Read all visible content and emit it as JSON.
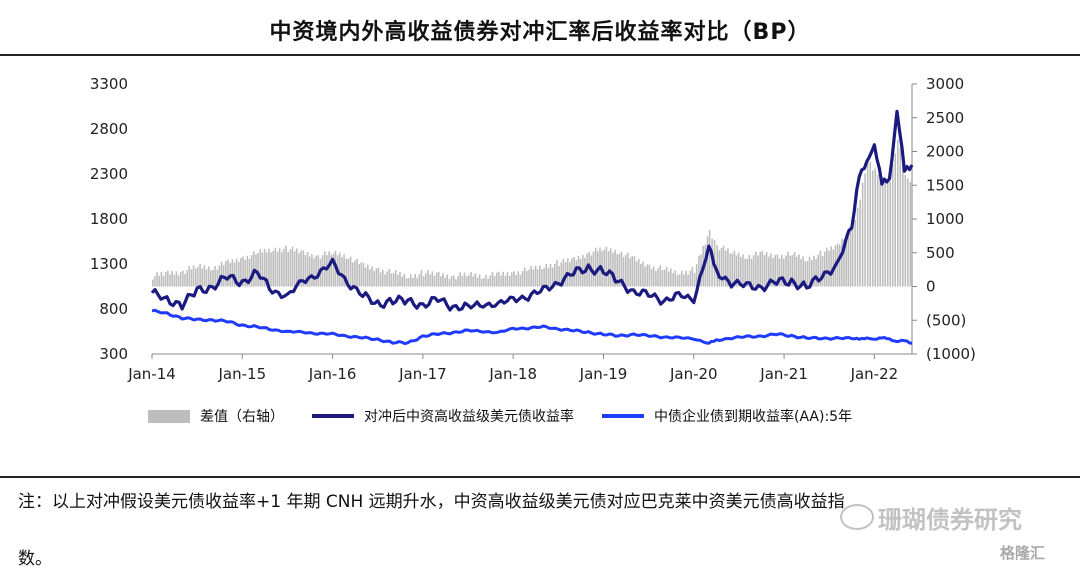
{
  "title": "中资境内外高收益债券对冲汇率后收益率对比（BP）",
  "legend": {
    "spread": "差值（右轴）",
    "hedged": "对冲后中资高收益级美元债收益率",
    "onshore": "中债企业债到期收益率(AA):5年"
  },
  "note": {
    "line1": "注：以上对冲假设美元债收益率+1 年期 CNH 远期升水，中资高收益级美元债对应巴克莱中资美元债高收益指",
    "line2": "数。"
  },
  "watermark": {
    "text": "珊瑚债券研究",
    "text2": "格隆汇"
  },
  "colors": {
    "spread": "#bdbdbd",
    "hedged": "#1a1a80",
    "onshore": "#1f3bff"
  },
  "chart_data": {
    "type": "line",
    "x_ticks": [
      "Jan-14",
      "Jan-15",
      "Jan-16",
      "Jan-17",
      "Jan-18",
      "Jan-19",
      "Jan-20",
      "Jan-21",
      "Jan-22"
    ],
    "x_range": [
      "2014-01",
      "2022-06"
    ],
    "y_left": {
      "ticks": [
        300,
        800,
        1300,
        1800,
        2300,
        2800,
        3300
      ],
      "range": [
        300,
        3300
      ]
    },
    "y_right": {
      "ticks": [
        "(1000)",
        "(500)",
        "0",
        "500",
        "1000",
        "1500",
        "2000",
        "2500",
        "3000"
      ],
      "range": [
        -1000,
        3000
      ]
    },
    "x": [
      "2014-01",
      "2014-03",
      "2014-05",
      "2014-07",
      "2014-09",
      "2014-11",
      "2015-01",
      "2015-03",
      "2015-05",
      "2015-07",
      "2015-09",
      "2015-11",
      "2016-01",
      "2016-03",
      "2016-05",
      "2016-07",
      "2016-09",
      "2016-11",
      "2017-01",
      "2017-03",
      "2017-05",
      "2017-07",
      "2017-09",
      "2017-11",
      "2018-01",
      "2018-03",
      "2018-05",
      "2018-07",
      "2018-09",
      "2018-11",
      "2019-01",
      "2019-03",
      "2019-05",
      "2019-07",
      "2019-09",
      "2019-11",
      "2020-01",
      "2020-03",
      "2020-04",
      "2020-06",
      "2020-08",
      "2020-10",
      "2020-12",
      "2021-02",
      "2021-04",
      "2021-06",
      "2021-08",
      "2021-10",
      "2021-11",
      "2021-12",
      "2022-01",
      "2022-02",
      "2022-03",
      "2022-04",
      "2022-05",
      "2022-06"
    ],
    "series": [
      {
        "name": "差值（右轴）",
        "axis": "right",
        "kind": "area",
        "values": [
          150,
          200,
          220,
          300,
          280,
          350,
          420,
          500,
          550,
          560,
          500,
          450,
          500,
          450,
          300,
          250,
          200,
          150,
          200,
          180,
          150,
          180,
          160,
          170,
          200,
          250,
          300,
          350,
          400,
          500,
          560,
          520,
          400,
          300,
          250,
          200,
          250,
          800,
          600,
          500,
          450,
          480,
          450,
          470,
          400,
          500,
          600,
          900,
          1300,
          1900,
          1700,
          1600,
          1550,
          2200,
          1700,
          1400
        ]
      },
      {
        "name": "对冲后中资高收益级美元债收益率",
        "axis": "left",
        "kind": "line",
        "values": [
          980,
          900,
          850,
          1000,
          1050,
          1150,
          1100,
          1200,
          1000,
          950,
          1100,
          1200,
          1300,
          1100,
          950,
          850,
          900,
          880,
          850,
          900,
          830,
          820,
          850,
          860,
          900,
          950,
          1000,
          1100,
          1200,
          1250,
          1230,
          1100,
          1000,
          950,
          900,
          950,
          900,
          1500,
          1200,
          1100,
          1050,
          1050,
          1100,
          1100,
          1050,
          1150,
          1300,
          1700,
          2300,
          2400,
          2650,
          2200,
          2200,
          3050,
          2300,
          2400
        ]
      },
      {
        "name": "中债企业债到期收益率(AA):5年",
        "axis": "left",
        "kind": "line",
        "values": [
          780,
          750,
          700,
          680,
          680,
          660,
          620,
          600,
          570,
          550,
          540,
          530,
          520,
          500,
          480,
          460,
          430,
          420,
          500,
          520,
          540,
          560,
          550,
          540,
          580,
          590,
          600,
          580,
          560,
          540,
          520,
          500,
          520,
          500,
          490,
          480,
          470,
          420,
          450,
          480,
          490,
          500,
          520,
          500,
          480,
          470,
          480,
          470,
          470,
          470,
          470,
          480,
          460,
          450,
          440,
          420
        ]
      }
    ]
  }
}
